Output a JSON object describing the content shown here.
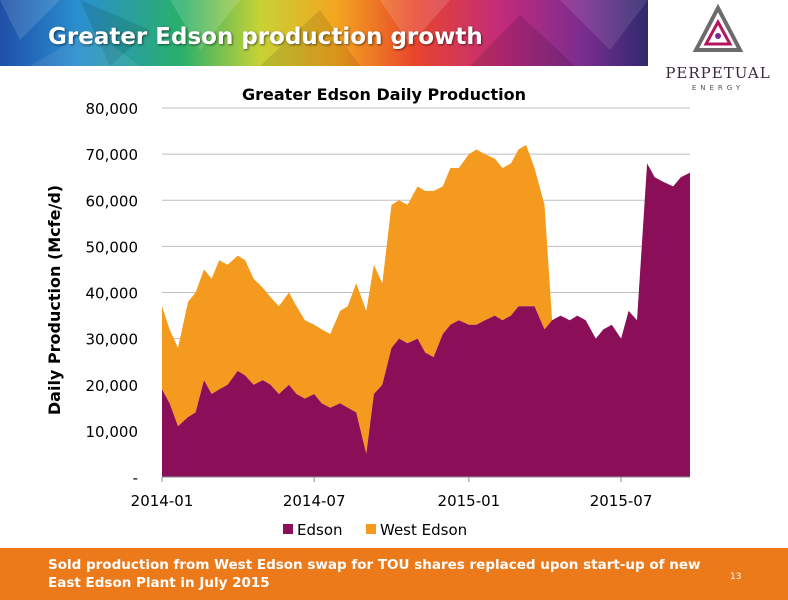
{
  "slide": {
    "title": "Greater Edson production growth",
    "footer": "Sold production from West Edson swap for TOU shares replaced upon start-up of new East Edson Plant in July 2015",
    "page_number": "13"
  },
  "logo": {
    "name": "PERPETUAL",
    "subtitle": "ENERGY"
  },
  "colors": {
    "edson": "#8b0f58",
    "west_edson": "#f39a1f",
    "footer": "#ec7a1b",
    "grid": "#bfbfbf"
  },
  "chart_data": {
    "type": "area",
    "stacked": true,
    "title": "Greater Edson Daily Production",
    "xlabel": "",
    "ylabel": "Daily Production (Mcfe/d)",
    "ylim": [
      0,
      80000
    ],
    "yticks": [
      0,
      10000,
      20000,
      30000,
      40000,
      50000,
      60000,
      70000,
      80000
    ],
    "ytick_labels": [
      "-",
      "10,000",
      "20,000",
      "30,000",
      "40,000",
      "50,000",
      "60,000",
      "70,000",
      "80,000"
    ],
    "xlim": [
      "2014-01-01",
      "2015-09-21"
    ],
    "xticks": [
      "2014-01-01",
      "2014-07-01",
      "2015-01-01",
      "2015-07-01"
    ],
    "xtick_labels": [
      "2014-01",
      "2014-07",
      "2015-01",
      "2015-07"
    ],
    "grid": true,
    "legend_position": "bottom",
    "x": [
      "2014-01-01",
      "2014-01-10",
      "2014-01-20",
      "2014-02-01",
      "2014-02-10",
      "2014-02-20",
      "2014-03-01",
      "2014-03-10",
      "2014-03-20",
      "2014-04-01",
      "2014-04-10",
      "2014-04-20",
      "2014-05-01",
      "2014-05-10",
      "2014-05-20",
      "2014-06-01",
      "2014-06-10",
      "2014-06-20",
      "2014-07-01",
      "2014-07-10",
      "2014-07-20",
      "2014-08-01",
      "2014-08-10",
      "2014-08-20",
      "2014-09-01",
      "2014-09-10",
      "2014-09-20",
      "2014-10-01",
      "2014-10-10",
      "2014-10-20",
      "2014-11-01",
      "2014-11-10",
      "2014-11-20",
      "2014-12-01",
      "2014-12-10",
      "2014-12-20",
      "2015-01-01",
      "2015-01-10",
      "2015-01-20",
      "2015-02-01",
      "2015-02-10",
      "2015-02-20",
      "2015-03-01",
      "2015-03-10",
      "2015-03-20",
      "2015-04-01",
      "2015-04-10",
      "2015-04-20",
      "2015-05-01",
      "2015-05-10",
      "2015-05-20",
      "2015-06-01",
      "2015-06-10",
      "2015-06-20",
      "2015-07-01",
      "2015-07-10",
      "2015-07-20",
      "2015-08-01",
      "2015-08-10",
      "2015-08-20",
      "2015-09-01",
      "2015-09-10",
      "2015-09-21"
    ],
    "series": [
      {
        "name": "Edson",
        "values": [
          19000,
          16000,
          11000,
          13000,
          14000,
          21000,
          18000,
          19000,
          20000,
          23000,
          22000,
          20000,
          21000,
          20000,
          18000,
          20000,
          18000,
          17000,
          18000,
          16000,
          15000,
          16000,
          15000,
          14000,
          5000,
          18000,
          20000,
          28000,
          30000,
          29000,
          30000,
          27000,
          26000,
          31000,
          33000,
          34000,
          33000,
          33000,
          34000,
          35000,
          34000,
          35000,
          37000,
          37000,
          37000,
          32000,
          34000,
          35000,
          34000,
          35000,
          34000,
          30000,
          32000,
          33000,
          30000,
          36000,
          34000,
          68000,
          65000,
          64000,
          63000,
          65000,
          66000
        ]
      },
      {
        "name": "West Edson",
        "values": [
          18000,
          16000,
          17000,
          25000,
          26000,
          24000,
          25000,
          28000,
          26000,
          25000,
          25000,
          23000,
          20000,
          19000,
          19000,
          20000,
          19000,
          17000,
          15000,
          16000,
          16000,
          20000,
          22000,
          28000,
          31000,
          28000,
          22000,
          31000,
          30000,
          30000,
          33000,
          35000,
          36000,
          32000,
          34000,
          33000,
          37000,
          38000,
          36000,
          34000,
          33000,
          33000,
          34000,
          35000,
          30000,
          27000,
          0,
          0,
          0,
          0,
          0,
          0,
          0,
          0,
          0,
          0,
          0,
          0,
          0,
          0,
          0,
          0,
          0
        ]
      }
    ]
  }
}
